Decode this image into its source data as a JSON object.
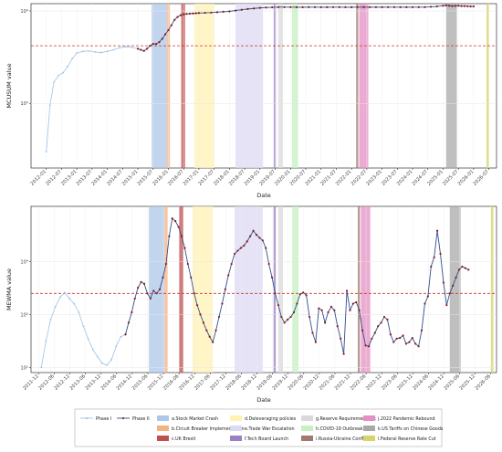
{
  "chart_data": [
    {
      "type": "line",
      "ylabel": "MCUSUM value",
      "xlabel": "Date",
      "yscale": "log",
      "ylim": [
        200,
        12000
      ],
      "y_ticks": [
        {
          "value": 1000,
          "label": "10³"
        },
        {
          "value": 10000,
          "label": "10⁴"
        }
      ],
      "x_ticks": [
        "2012-01",
        "2012-07",
        "2013-01",
        "2013-07",
        "2014-01",
        "2014-07",
        "2015-01",
        "2015-07",
        "2016-01",
        "2016-07",
        "2017-01",
        "2017-07",
        "2018-01",
        "2018-07",
        "2019-01",
        "2019-07",
        "2020-01",
        "2020-07",
        "2021-01",
        "2021-07",
        "2022-01",
        "2022-07",
        "2023-01",
        "2023-07",
        "2024-01",
        "2024-07",
        "2025-01",
        "2025-07",
        "2026-01",
        "2026-07"
      ],
      "x_range": [
        2011.5,
        2026.75
      ],
      "threshold": 4200,
      "series": [
        {
          "name": "Phase I",
          "x": [
            2012.0,
            2012.12,
            2012.25,
            2012.4,
            2012.55,
            2012.7,
            2012.85,
            2013.0,
            2013.2,
            2013.4,
            2013.6,
            2013.8,
            2014.0,
            2014.2,
            2014.4,
            2014.6,
            2014.8,
            2015.0
          ],
          "y": [
            300,
            950,
            1700,
            2000,
            2150,
            2500,
            3050,
            3500,
            3650,
            3700,
            3600,
            3550,
            3650,
            3800,
            4000,
            4100,
            4050,
            3900
          ]
        },
        {
          "name": "Phase II",
          "x": [
            2015.0,
            2015.1,
            2015.2,
            2015.3,
            2015.4,
            2015.5,
            2015.6,
            2015.7,
            2015.8,
            2015.9,
            2016.0,
            2016.1,
            2016.2,
            2016.3,
            2016.4,
            2016.5,
            2016.6,
            2016.7,
            2016.8,
            2016.9,
            2017.0,
            2017.2,
            2017.4,
            2017.6,
            2017.8,
            2018.0,
            2018.2,
            2018.4,
            2018.6,
            2018.8,
            2019.0,
            2019.2,
            2019.4,
            2019.6,
            2019.8,
            2020.0,
            2020.2,
            2020.4,
            2020.6,
            2020.8,
            2021.0,
            2021.2,
            2021.4,
            2021.6,
            2021.8,
            2022.0,
            2022.2,
            2022.4,
            2022.6,
            2022.8,
            2023.0,
            2023.2,
            2023.4,
            2023.6,
            2023.8,
            2024.0,
            2024.2,
            2024.4,
            2024.6,
            2024.8,
            2025.0,
            2025.1,
            2025.2,
            2025.3,
            2025.4,
            2025.5,
            2025.6,
            2025.7,
            2025.8,
            2025.9,
            2026.0
          ],
          "y": [
            3900,
            3800,
            3700,
            3900,
            4200,
            4400,
            4400,
            4600,
            5000,
            5600,
            6200,
            7000,
            8000,
            8600,
            9000,
            9200,
            9300,
            9350,
            9400,
            9450,
            9500,
            9550,
            9600,
            9700,
            9800,
            9900,
            10100,
            10300,
            10500,
            10650,
            10800,
            10900,
            10950,
            11000,
            11000,
            11000,
            10980,
            10990,
            11000,
            11000,
            10980,
            10990,
            11000,
            11000,
            10980,
            10990,
            11000,
            11000,
            10990,
            11000,
            10990,
            11000,
            11000,
            11000,
            10990,
            11000,
            11000,
            11000,
            11100,
            11200,
            11400,
            11500,
            11400,
            11300,
            11350,
            11400,
            11300,
            11300,
            11250,
            11200,
            11200
          ]
        }
      ]
    },
    {
      "type": "line",
      "ylabel": "MEWMA value",
      "xlabel": "Date",
      "yscale": "log",
      "ylim": [
        80,
        110000
      ],
      "y_ticks": [
        {
          "value": 100,
          "label": "10²"
        },
        {
          "value": 1000,
          "label": "10³"
        },
        {
          "value": 10000,
          "label": "10⁴"
        }
      ],
      "x_ticks": [
        "2011-12",
        "2012-06",
        "2012-12",
        "2013-06",
        "2013-12",
        "2014-06",
        "2014-12",
        "2015-06",
        "2015-12",
        "2016-06",
        "2016-12",
        "2017-06",
        "2017-12",
        "2018-06",
        "2018-12",
        "2019-06",
        "2019-12",
        "2020-06",
        "2020-12",
        "2021-06",
        "2021-12",
        "2022-06",
        "2022-12",
        "2023-06",
        "2023-12",
        "2024-06",
        "2024-12",
        "2025-06",
        "2025-12",
        "2026-06"
      ],
      "x_range": [
        2011.67,
        2026.6
      ],
      "threshold": 2500,
      "series": [
        {
          "name": "Phase I",
          "x": [
            2012.0,
            2012.15,
            2012.3,
            2012.45,
            2012.6,
            2012.75,
            2012.9,
            2013.05,
            2013.2,
            2013.35,
            2013.5,
            2013.65,
            2013.8,
            2013.95,
            2014.1,
            2014.25,
            2014.4,
            2014.55,
            2014.7
          ],
          "y": [
            100,
            320,
            800,
            1400,
            2100,
            2600,
            2000,
            1600,
            1100,
            600,
            350,
            220,
            160,
            120,
            110,
            140,
            250,
            380,
            420
          ]
        },
        {
          "name": "Phase II",
          "x": [
            2014.7,
            2014.8,
            2014.9,
            2015.0,
            2015.1,
            2015.2,
            2015.3,
            2015.4,
            2015.5,
            2015.6,
            2015.7,
            2015.8,
            2015.9,
            2016.0,
            2016.1,
            2016.2,
            2016.3,
            2016.4,
            2016.5,
            2016.6,
            2016.7,
            2016.8,
            2016.9,
            2017.0,
            2017.1,
            2017.2,
            2017.3,
            2017.4,
            2017.5,
            2017.6,
            2017.7,
            2017.8,
            2017.9,
            2018.0,
            2018.1,
            2018.2,
            2018.3,
            2018.4,
            2018.5,
            2018.6,
            2018.7,
            2018.8,
            2018.9,
            2019.0,
            2019.1,
            2019.2,
            2019.3,
            2019.4,
            2019.5,
            2019.6,
            2019.7,
            2019.8,
            2019.9,
            2020.0,
            2020.1,
            2020.2,
            2020.3,
            2020.4,
            2020.5,
            2020.6,
            2020.7,
            2020.8,
            2020.9,
            2021.0,
            2021.1,
            2021.2,
            2021.3,
            2021.4,
            2021.5,
            2021.6,
            2021.7,
            2021.8,
            2021.9,
            2022.0,
            2022.1,
            2022.2,
            2022.3,
            2022.4,
            2022.5,
            2022.6,
            2022.7,
            2022.8,
            2022.9,
            2023.0,
            2023.1,
            2023.2,
            2023.3,
            2023.4,
            2023.5,
            2023.6,
            2023.7,
            2023.8,
            2023.9,
            2024.0,
            2024.1,
            2024.2,
            2024.3,
            2024.4,
            2024.5,
            2024.6,
            2024.7,
            2024.8,
            2024.9,
            2025.0,
            2025.1,
            2025.2,
            2025.3,
            2025.4,
            2025.5,
            2025.6,
            2025.7
          ],
          "y": [
            420,
            700,
            1100,
            2000,
            3200,
            4100,
            3800,
            2500,
            2000,
            2800,
            2500,
            3000,
            5000,
            9000,
            30000,
            65000,
            58000,
            45000,
            30000,
            18000,
            9000,
            5000,
            2500,
            1500,
            1000,
            700,
            500,
            380,
            300,
            500,
            900,
            1600,
            3000,
            5500,
            9000,
            14000,
            16000,
            18000,
            20000,
            24000,
            30000,
            38000,
            32000,
            28000,
            25000,
            18000,
            9000,
            5000,
            2500,
            1500,
            900,
            700,
            800,
            900,
            1100,
            1600,
            2400,
            2600,
            2300,
            900,
            450,
            300,
            1300,
            1200,
            700,
            1100,
            1400,
            1200,
            600,
            350,
            180,
            2800,
            1200,
            1600,
            1700,
            1200,
            500,
            260,
            250,
            350,
            450,
            600,
            700,
            900,
            800,
            420,
            300,
            350,
            360,
            400,
            280,
            300,
            360,
            280,
            250,
            500,
            1600,
            2200,
            8000,
            12000,
            38000,
            14000,
            4000,
            1500,
            2500,
            3500,
            5000,
            7000,
            8000,
            7500,
            7000
          ]
        }
      ]
    }
  ],
  "events": [
    {
      "id": "a",
      "label": "a.Stock Market Crash",
      "start": 2015.45,
      "end": 2015.95,
      "color": "#aec7e8"
    },
    {
      "id": "b",
      "label": "b.Circuit Breaker Implementation",
      "start": 2015.95,
      "end": 2016.05,
      "color": "#f4b183"
    },
    {
      "id": "c",
      "label": "c.UK Brexit",
      "start": 2016.42,
      "end": 2016.55,
      "color": "#c0504d"
    },
    {
      "id": "d",
      "label": "d.Deleveraging policies",
      "start": 2016.85,
      "end": 2017.5,
      "color": "#fff2b3"
    },
    {
      "id": "e",
      "label": "e.Trade War Escalation",
      "start": 2018.2,
      "end": 2019.1,
      "color": "#dcd9f2"
    },
    {
      "id": "f",
      "label": "f.Tech Board Launch",
      "start": 2019.45,
      "end": 2019.52,
      "color": "#9a7fc4"
    },
    {
      "id": "g",
      "label": "g.Reserve Requirement Cut",
      "start": 2019.6,
      "end": 2019.75,
      "color": "#d9d9d9"
    },
    {
      "id": "h",
      "label": "h.COVID-19 Outbreak",
      "start": 2020.05,
      "end": 2020.25,
      "color": "#c6f0c2"
    },
    {
      "id": "i",
      "label": "i.Russia-Ukraine Conflict",
      "start": 2022.15,
      "end": 2022.22,
      "color": "#a07a6e"
    },
    {
      "id": "j",
      "label": "j.2022 Pandemic Rebound",
      "start": 2022.25,
      "end": 2022.55,
      "color": "#e58fc4"
    },
    {
      "id": "k",
      "label": "k.US Tariffs on Chinese Goods",
      "start": 2025.1,
      "end": 2025.45,
      "color": "#a9a9a9"
    },
    {
      "id": "l",
      "label": "l.Federal Reserve Rate Cut",
      "start": 2026.42,
      "end": 2026.5,
      "color": "#d6d46a"
    }
  ],
  "colors": {
    "phase1": "#9dc3e6",
    "phase2": "#2f4f8f",
    "marker": "#8b1a1a",
    "threshold": "#c0392b"
  },
  "legend": {
    "phase1": "Phase I",
    "phase2": "Phase II"
  }
}
